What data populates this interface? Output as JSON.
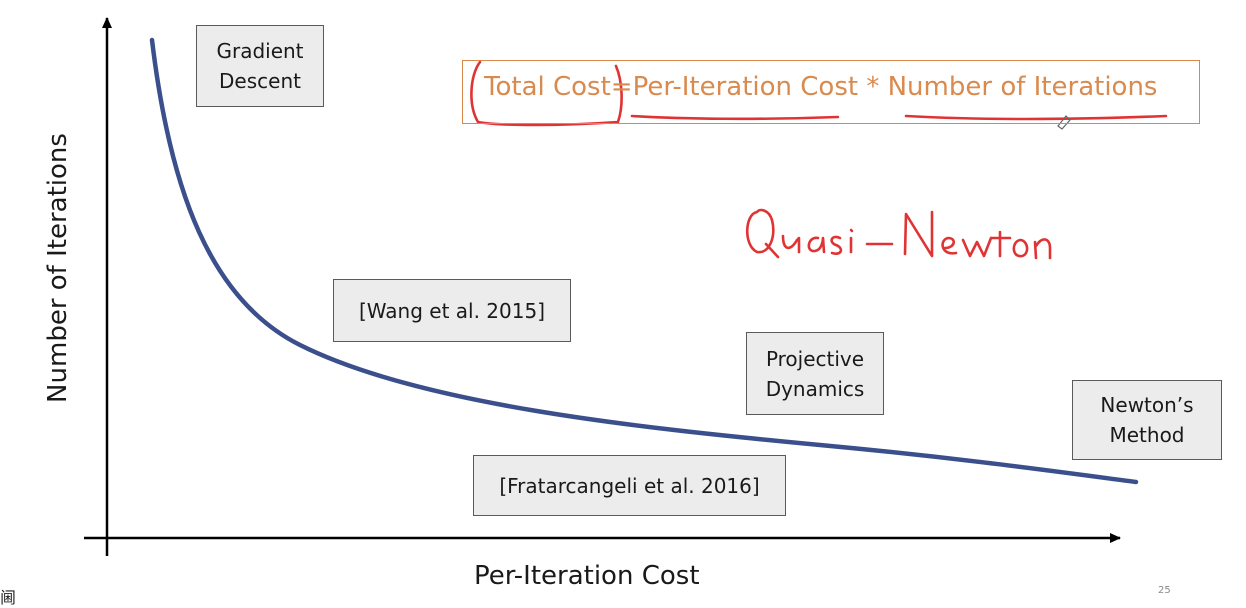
{
  "axes": {
    "x_title": "Per-Iteration Cost",
    "y_title": "Number of Iterations"
  },
  "methods": {
    "gradient_descent": "Gradient\nDescent",
    "wang": "[Wang et al. 2015]",
    "projective_dynamics": "Projective\nDynamics",
    "fratarcangeli": "[Fratarcangeli et al. 2016]",
    "newton": "Newton’s\nMethod"
  },
  "formula": {
    "text": "Total Cost=Per-Iteration Cost * Number of Iterations"
  },
  "annotation": {
    "handwritten": "Quasi-Newton"
  },
  "footer": {
    "corner_glyph": "阃",
    "page_number": "25"
  },
  "colors": {
    "curve": "#3b4f8c",
    "axis": "#000000",
    "formula": "#d98a4e",
    "ink": "#e03434",
    "box_fill": "#ececec"
  }
}
